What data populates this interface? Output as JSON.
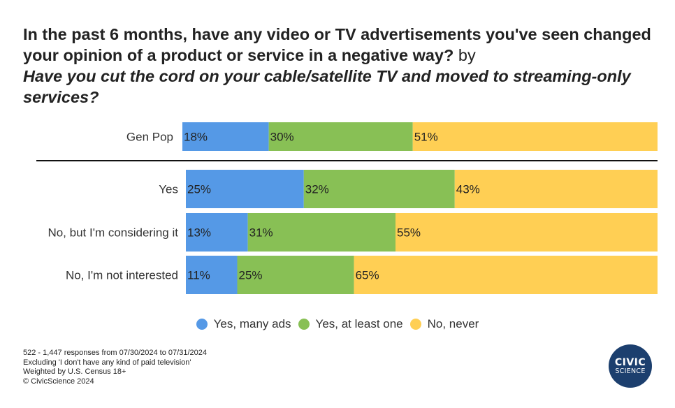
{
  "title": {
    "question": "In the past 6 months, have any video or TV advertisements you've seen changed your opinion of a product or service in a negative way?",
    "by": "by",
    "segment": "Have you cut the cord on your cable/satellite TV and moved to streaming-only services?"
  },
  "colors": {
    "yes_many_ads": "#5599e6",
    "yes_at_least_one": "#88c055",
    "no_never": "#ffcf54",
    "logo_bg": "#1c3f6e"
  },
  "chart_data": {
    "type": "bar",
    "orientation": "horizontal",
    "stacked": true,
    "normalized": true,
    "categories": [
      "Gen Pop",
      "Yes",
      "No, but I'm considering it",
      "No, I'm not interested"
    ],
    "series": [
      {
        "name": "Yes, many ads",
        "values": [
          18,
          25,
          13,
          11
        ],
        "labels": [
          "18%",
          "25%",
          "13%",
          "11%"
        ]
      },
      {
        "name": "Yes, at least one",
        "values": [
          30,
          32,
          31,
          25
        ],
        "labels": [
          "30%",
          "32%",
          "31%",
          "25%"
        ]
      },
      {
        "name": "No, never",
        "values": [
          51,
          43,
          55,
          65
        ],
        "labels": [
          "51%",
          "43%",
          "55%",
          "65%"
        ]
      }
    ],
    "legend_position": "bottom",
    "grid": false
  },
  "footer": {
    "line1": "522 - 1,447 responses from 07/30/2024 to 07/31/2024",
    "line2": "Excluding 'I don't have any kind of paid television'",
    "line3": "Weighted by U.S. Census 18+",
    "line4": "© CivicScience 2024"
  },
  "logo": {
    "line1": "CIVIC",
    "line2": "SCIENCE"
  }
}
